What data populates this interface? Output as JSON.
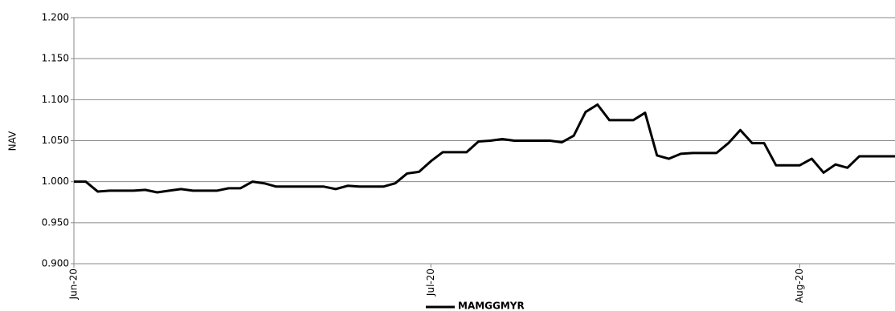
{
  "chart_data": {
    "type": "line",
    "y_label": "NAV",
    "categories": [
      "Jun-20",
      null,
      null,
      null,
      null,
      null,
      null,
      null,
      null,
      null,
      null,
      null,
      null,
      null,
      null,
      null,
      null,
      null,
      null,
      null,
      null,
      null,
      null,
      null,
      null,
      null,
      null,
      null,
      null,
      null,
      "Jul-20",
      null,
      null,
      null,
      null,
      null,
      null,
      null,
      null,
      null,
      null,
      null,
      null,
      null,
      null,
      null,
      null,
      null,
      null,
      null,
      null,
      null,
      null,
      null,
      null,
      null,
      null,
      null,
      null,
      null,
      null,
      "Aug-20",
      null,
      null,
      null,
      null,
      null,
      null,
      null,
      null
    ],
    "series": [
      {
        "name": "MAMGGMYR",
        "color": "#000000",
        "values": [
          1.0,
          1.0,
          0.988,
          0.989,
          0.989,
          0.989,
          0.99,
          0.987,
          0.989,
          0.991,
          0.989,
          0.989,
          0.989,
          0.992,
          0.992,
          1.0,
          0.998,
          0.994,
          0.994,
          0.994,
          0.994,
          0.994,
          0.991,
          0.995,
          0.994,
          0.994,
          0.994,
          0.998,
          1.01,
          1.012,
          1.025,
          1.036,
          1.036,
          1.036,
          1.049,
          1.05,
          1.052,
          1.05,
          1.05,
          1.05,
          1.05,
          1.048,
          1.056,
          1.085,
          1.094,
          1.075,
          1.075,
          1.075,
          1.084,
          1.032,
          1.028,
          1.034,
          1.035,
          1.035,
          1.035,
          1.047,
          1.063,
          1.047,
          1.047,
          1.02,
          1.02,
          1.02,
          1.028,
          1.011,
          1.021,
          1.017,
          1.031,
          1.031,
          1.031,
          1.031
        ]
      }
    ],
    "ylim": [
      0.9,
      1.2
    ],
    "yticks": [
      {
        "value": 0.9,
        "label": "0.900"
      },
      {
        "value": 0.95,
        "label": "0.950"
      },
      {
        "value": 1.0,
        "label": "1.000"
      },
      {
        "value": 1.05,
        "label": "1.050"
      },
      {
        "value": 1.1,
        "label": "1.100"
      },
      {
        "value": 1.15,
        "label": "1.150"
      },
      {
        "value": 1.2,
        "label": "1.200"
      }
    ],
    "grid": true,
    "legend": "bottom"
  }
}
